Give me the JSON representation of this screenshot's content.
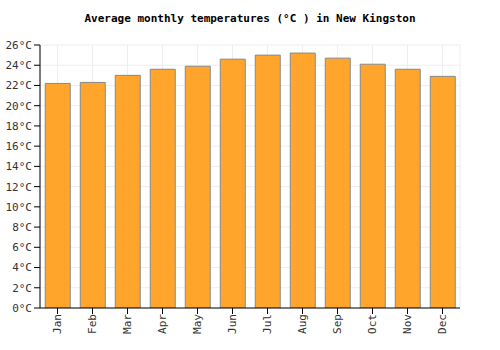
{
  "chart_data": {
    "type": "bar",
    "title": "Average monthly temperatures (°C ) in New Kingston",
    "categories": [
      "Jan",
      "Feb",
      "Mar",
      "Apr",
      "May",
      "Jun",
      "Jul",
      "Aug",
      "Sep",
      "Oct",
      "Nov",
      "Dec"
    ],
    "values": [
      22.2,
      22.3,
      23.0,
      23.6,
      23.9,
      24.6,
      25.0,
      25.2,
      24.7,
      24.1,
      23.6,
      22.9
    ],
    "color": "#ffa52b",
    "ylim": [
      0,
      26
    ],
    "yticks": [
      {
        "value": 0,
        "label": "0°C"
      },
      {
        "value": 2,
        "label": "2°C"
      },
      {
        "value": 4,
        "label": "4°C"
      },
      {
        "value": 6,
        "label": "6°C"
      },
      {
        "value": 8,
        "label": "8°C"
      },
      {
        "value": 10,
        "label": "10°C"
      },
      {
        "value": 12,
        "label": "12°C"
      },
      {
        "value": 14,
        "label": "14°C"
      },
      {
        "value": 16,
        "label": "16°C"
      },
      {
        "value": 18,
        "label": "18°C"
      },
      {
        "value": 20,
        "label": "20°C"
      },
      {
        "value": 22,
        "label": "22°C"
      },
      {
        "value": 24,
        "label": "24°C"
      },
      {
        "value": 26,
        "label": "26°C"
      }
    ],
    "grid": true
  }
}
